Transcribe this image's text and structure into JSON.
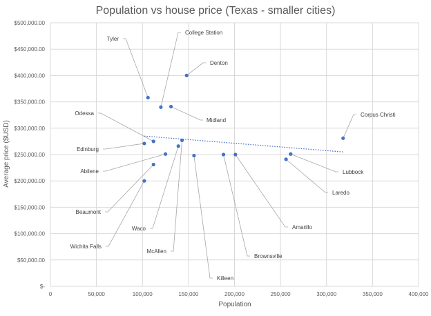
{
  "chart_data": {
    "type": "scatter",
    "title": "Population vs house price (Texas - smaller cities)",
    "xlabel": "Population",
    "ylabel": "Average price ($USD)",
    "xlim": [
      0,
      400000
    ],
    "ylim": [
      0,
      500000
    ],
    "x_ticks": [
      0,
      50000,
      100000,
      150000,
      200000,
      250000,
      300000,
      350000,
      400000
    ],
    "x_tick_labels": [
      "0",
      "50,000",
      "100,000",
      "150,000",
      "200,000",
      "250,000",
      "300,000",
      "350,000",
      "400,000"
    ],
    "y_ticks": [
      0,
      50000,
      100000,
      150000,
      200000,
      250000,
      300000,
      350000,
      400000,
      450000,
      500000
    ],
    "y_tick_labels": [
      "$-",
      "$50,000.00",
      "$100,000.00",
      "$150,000.00",
      "$200,000.00",
      "$250,000.00",
      "$300,000.00",
      "$350,000.00",
      "$400,000.00",
      "$450,000.00",
      "$500,000.00"
    ],
    "grid": {
      "vertical": true,
      "horizontal": true
    },
    "points": [
      {
        "label": "Tyler",
        "x": 106000,
        "y": 358000
      },
      {
        "label": "College Station",
        "x": 120000,
        "y": 340000
      },
      {
        "label": "Denton",
        "x": 148000,
        "y": 400000
      },
      {
        "label": "Midland",
        "x": 131000,
        "y": 341000
      },
      {
        "label": "Odessa",
        "x": 112000,
        "y": 275000
      },
      {
        "label": "Edinburg",
        "x": 102000,
        "y": 271000
      },
      {
        "label": "Abilene",
        "x": 125000,
        "y": 251000
      },
      {
        "label": "Beaumont",
        "x": 112000,
        "y": 231000
      },
      {
        "label": "Wichita Falls",
        "x": 102000,
        "y": 200000
      },
      {
        "label": "Waco",
        "x": 139000,
        "y": 266000
      },
      {
        "label": "McAllen",
        "x": 143000,
        "y": 277000
      },
      {
        "label": "Killeen",
        "x": 156000,
        "y": 248000
      },
      {
        "label": "Brownsville",
        "x": 188000,
        "y": 250000
      },
      {
        "label": "Amarillo",
        "x": 201000,
        "y": 250000
      },
      {
        "label": "Laredo",
        "x": 256000,
        "y": 241000
      },
      {
        "label": "Lubbock",
        "x": 261000,
        "y": 251000
      },
      {
        "label": "Corpus Christi",
        "x": 318000,
        "y": 281000
      }
    ],
    "trendline": {
      "style": "dotted",
      "from": {
        "x": 102000,
        "y": 285000
      },
      "to": {
        "x": 318000,
        "y": 255000
      }
    },
    "colors": {
      "marker": "#4472c4",
      "trendline": "#4472c4",
      "grid": "#d9d9d9",
      "text": "#595959",
      "leader": "#a6a6a6"
    }
  }
}
